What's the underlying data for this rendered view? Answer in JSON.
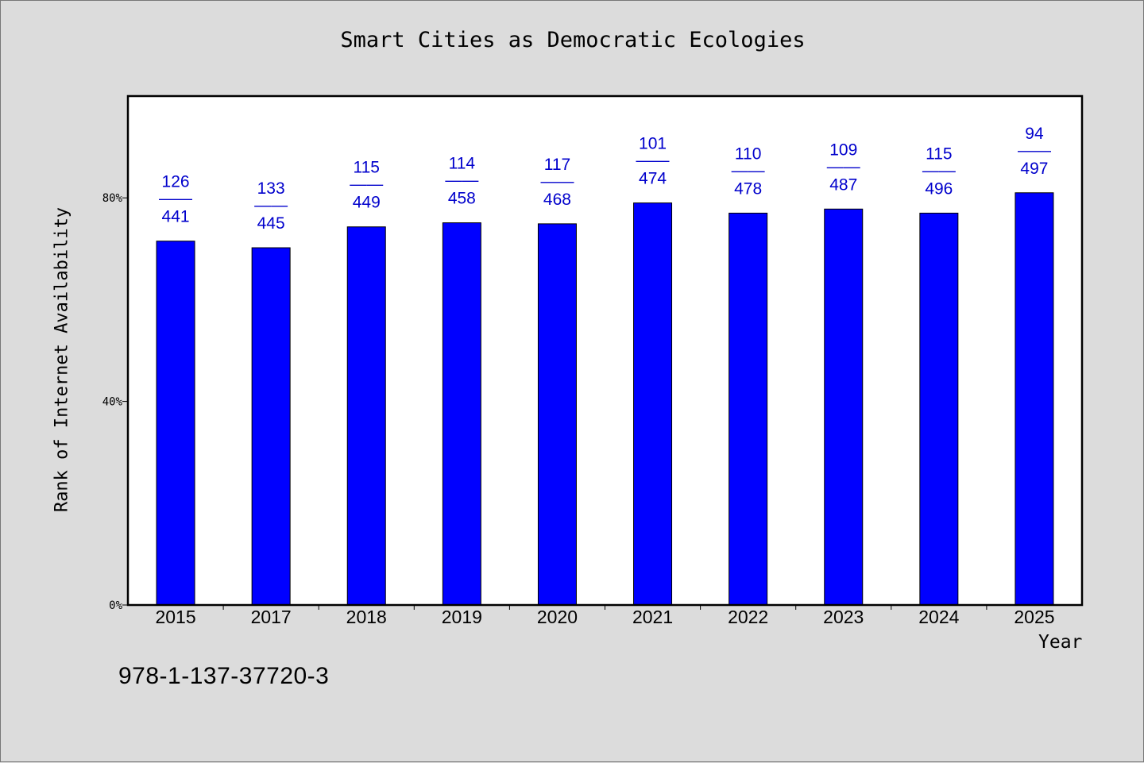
{
  "isbn": "978-1-137-37720-3",
  "chart_data": {
    "type": "bar",
    "title": "Smart Cities as Democratic Ecologies",
    "xlabel": "Year",
    "ylabel": "Rank of Internet Availability",
    "categories": [
      "2015",
      "2017",
      "2018",
      "2019",
      "2020",
      "2021",
      "2022",
      "2023",
      "2024",
      "2025"
    ],
    "values": [
      71.5,
      70.2,
      74.3,
      75.1,
      74.9,
      79.0,
      77.0,
      77.8,
      77.0,
      81.0
    ],
    "ylim": [
      0,
      100
    ],
    "yticks": [
      0,
      40,
      80
    ],
    "ytick_labels": [
      "0%",
      "40%",
      "80%"
    ],
    "bar_color": "#0000ff",
    "label_color": "#0000cc",
    "data_labels": [
      {
        "top": "126",
        "sep": "——",
        "bottom": "441"
      },
      {
        "top": "133",
        "sep": "——",
        "bottom": "445"
      },
      {
        "top": "115",
        "sep": "——",
        "bottom": "449"
      },
      {
        "top": "114",
        "sep": "——",
        "bottom": "458"
      },
      {
        "top": "117",
        "sep": "——",
        "bottom": "468"
      },
      {
        "top": "101",
        "sep": "——",
        "bottom": "474"
      },
      {
        "top": "110",
        "sep": "——",
        "bottom": "478"
      },
      {
        "top": "109",
        "sep": "——",
        "bottom": "487"
      },
      {
        "top": "115",
        "sep": "——",
        "bottom": "496"
      },
      {
        "top": "94",
        "sep": "——",
        "bottom": "497"
      }
    ],
    "grid": false,
    "legend": "none"
  }
}
